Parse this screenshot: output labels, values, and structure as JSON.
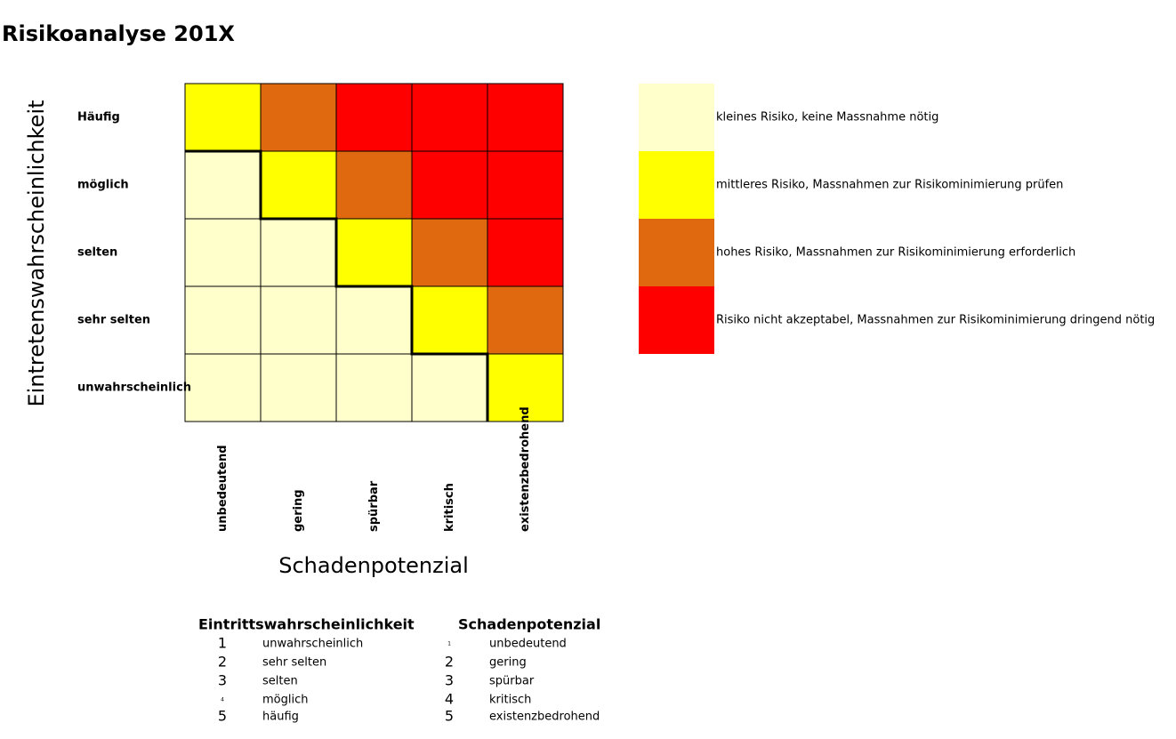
{
  "title": "Risikoanalyse 201X",
  "matrix": {
    "y_label": "Eintretenswahrscheinlichkeit",
    "x_label": "Schadenpotenzial",
    "rows": [
      "Häufig",
      "möglich",
      "selten",
      "sehr selten",
      "unwahrscheinlich"
    ],
    "columns": [
      "unbedeutend",
      "gering",
      "spürbar",
      "kritisch",
      "existenzbedrohend"
    ],
    "cells": [
      [
        "#ffff00",
        "#e0690f",
        "#ff0000",
        "#ff0000",
        "#ff0000"
      ],
      [
        "#ffffcc",
        "#ffff00",
        "#e0690f",
        "#ff0000",
        "#ff0000"
      ],
      [
        "#ffffcc",
        "#ffffcc",
        "#ffff00",
        "#e0690f",
        "#ff0000"
      ],
      [
        "#ffffcc",
        "#ffffcc",
        "#ffffcc",
        "#ffff00",
        "#e0690f"
      ],
      [
        "#ffffcc",
        "#ffffcc",
        "#ffffcc",
        "#ffffcc",
        "#ffff00"
      ]
    ]
  },
  "legend": [
    {
      "color": "#ffffcc",
      "label": "kleines Risiko, keine Massnahme nötig"
    },
    {
      "color": "#ffff00",
      "label": "mittleres Risiko, Massnahmen zur Risikominimierung prüfen"
    },
    {
      "color": "#e0690f",
      "label": "hohes Risiko, Massnahmen zur Risikominimierung erforderlich"
    },
    {
      "color": "#ff0000",
      "label": "Risiko nicht akzeptabel, Massnahmen zur Risikominimierung dringend nötig"
    }
  ],
  "tables": [
    {
      "title": "Eintrittswahrscheinlichkeit",
      "rows": [
        {
          "number": 1,
          "label": "unwahrscheinlich"
        },
        {
          "number": 2,
          "label": "sehr selten"
        },
        {
          "number": 3,
          "label": "selten"
        },
        {
          "number": 4,
          "label": "möglich"
        },
        {
          "number": 5,
          "label": "häufig"
        }
      ]
    },
    {
      "title": "Schadenpotenzial",
      "rows": [
        {
          "number": 1,
          "label": "unbedeutend"
        },
        {
          "number": 2,
          "label": "gering"
        },
        {
          "number": 3,
          "label": "spürbar"
        },
        {
          "number": 4,
          "label": "kritisch"
        },
        {
          "number": 5,
          "label": "existenzbedrohend"
        }
      ]
    }
  ]
}
